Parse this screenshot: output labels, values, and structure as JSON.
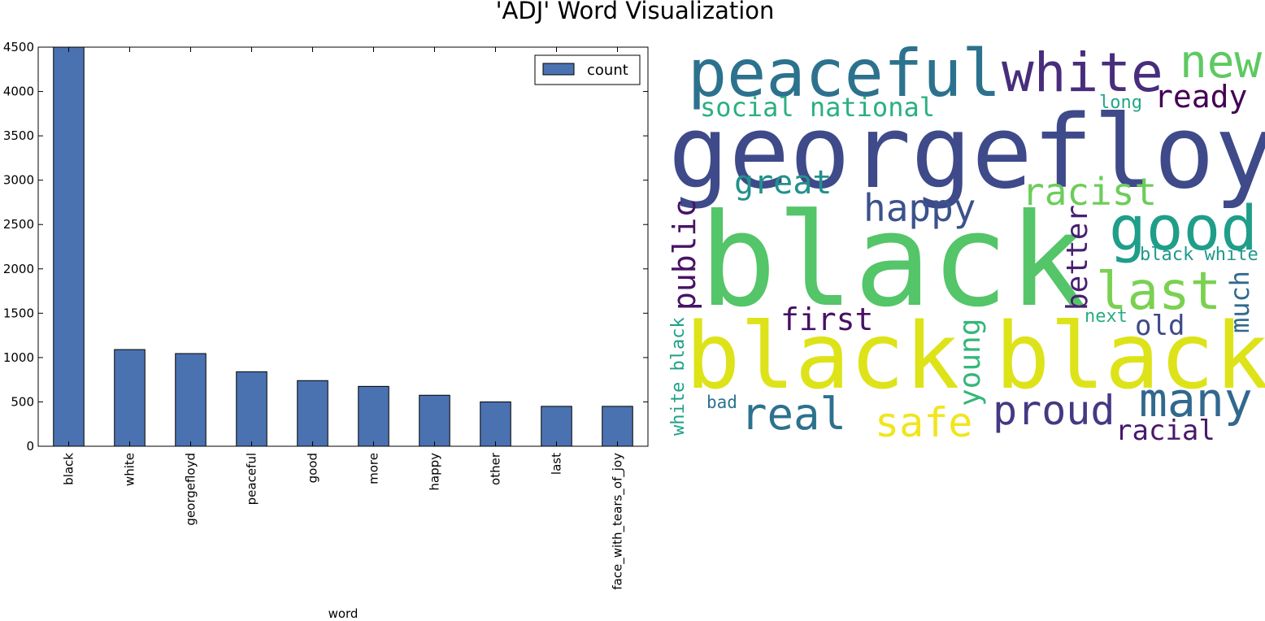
{
  "figure": {
    "title": "'ADJ' Word Visualization"
  },
  "chart_data": [
    {
      "type": "bar",
      "title": "",
      "xlabel": "word",
      "ylabel": "",
      "ylim": [
        0,
        4500
      ],
      "yticks": [
        0,
        500,
        1000,
        1500,
        2000,
        2500,
        3000,
        3500,
        4000,
        4500
      ],
      "categories": [
        "black",
        "white",
        "georgefloyd",
        "peaceful",
        "good",
        "more",
        "happy",
        "other",
        "last",
        "face_with_tears_of_joy"
      ],
      "series": [
        {
          "name": "count",
          "color": "#4a72b0",
          "values": [
            4500,
            1090,
            1045,
            840,
            740,
            675,
            575,
            500,
            450,
            450
          ]
        }
      ],
      "legend": {
        "position": "top-right",
        "labels": [
          "count"
        ]
      },
      "grid": false
    },
    {
      "type": "wordcloud",
      "colormap": "viridis",
      "words": [
        {
          "text": "black",
          "color": "#54c568"
        },
        {
          "text": "georgefloyd",
          "color": "#3e4a89"
        },
        {
          "text": "black",
          "color": "#dde318"
        },
        {
          "text": "black",
          "color": "#dde318"
        },
        {
          "text": "peaceful",
          "color": "#2c728e"
        },
        {
          "text": "white",
          "color": "#472d7b"
        },
        {
          "text": "new",
          "color": "#5ec962"
        },
        {
          "text": "good",
          "color": "#1f9e89"
        },
        {
          "text": "last",
          "color": "#7ad151"
        },
        {
          "text": "many",
          "color": "#31688e"
        },
        {
          "text": "proud",
          "color": "#443983"
        },
        {
          "text": "real",
          "color": "#2c728e"
        },
        {
          "text": "safe",
          "color": "#f1e51d"
        },
        {
          "text": "happy",
          "color": "#3b528b"
        },
        {
          "text": "racist",
          "color": "#6ccd5a"
        },
        {
          "text": "great",
          "color": "#21918c"
        },
        {
          "text": "ready",
          "color": "#440154"
        },
        {
          "text": "social national",
          "color": "#2ab07f"
        },
        {
          "text": "long",
          "color": "#22a884"
        },
        {
          "text": "first",
          "color": "#471063"
        },
        {
          "text": "public",
          "color": "#471365"
        },
        {
          "text": "better",
          "color": "#482071"
        },
        {
          "text": "young",
          "color": "#35b779"
        },
        {
          "text": "black white",
          "color": "#1f988b"
        },
        {
          "text": "much",
          "color": "#31688e"
        },
        {
          "text": "next",
          "color": "#26ad81"
        },
        {
          "text": "old",
          "color": "#3e4a89"
        },
        {
          "text": "racial",
          "color": "#48186a"
        },
        {
          "text": "bad",
          "color": "#2c728e"
        },
        {
          "text": "white black",
          "color": "#1fa088"
        }
      ]
    }
  ]
}
